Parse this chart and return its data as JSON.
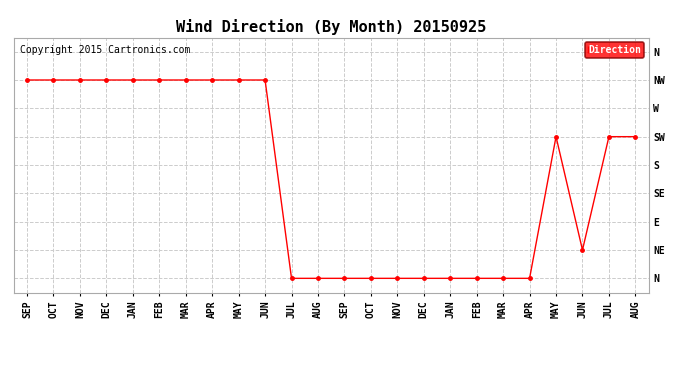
{
  "title": "Wind Direction (By Month) 20150925",
  "copyright": "Copyright 2015 Cartronics.com",
  "legend_label": "Direction",
  "x_labels": [
    "SEP",
    "OCT",
    "NOV",
    "DEC",
    "JAN",
    "FEB",
    "MAR",
    "APR",
    "MAY",
    "JUN",
    "JUL",
    "AUG",
    "SEP",
    "OCT",
    "NOV",
    "DEC",
    "JAN",
    "FEB",
    "MAR",
    "APR",
    "MAY",
    "JUN",
    "JUL",
    "AUG"
  ],
  "y_labels_top_to_bottom": [
    "N",
    "NW",
    "W",
    "SW",
    "S",
    "SE",
    "E",
    "NE",
    "N"
  ],
  "y_tick_positions": [
    8,
    7,
    6,
    5,
    4,
    3,
    2,
    1,
    0
  ],
  "direction_values": [
    7,
    7,
    7,
    7,
    7,
    7,
    7,
    7,
    7,
    7,
    0,
    0,
    0,
    0,
    0,
    0,
    0,
    0,
    0,
    0,
    5,
    1,
    5,
    5
  ],
  "line_color": "#ff0000",
  "marker_size": 2.5,
  "grid_color": "#cccccc",
  "bg_color": "#ffffff",
  "title_fontsize": 11,
  "tick_fontsize": 7,
  "copyright_fontsize": 7
}
